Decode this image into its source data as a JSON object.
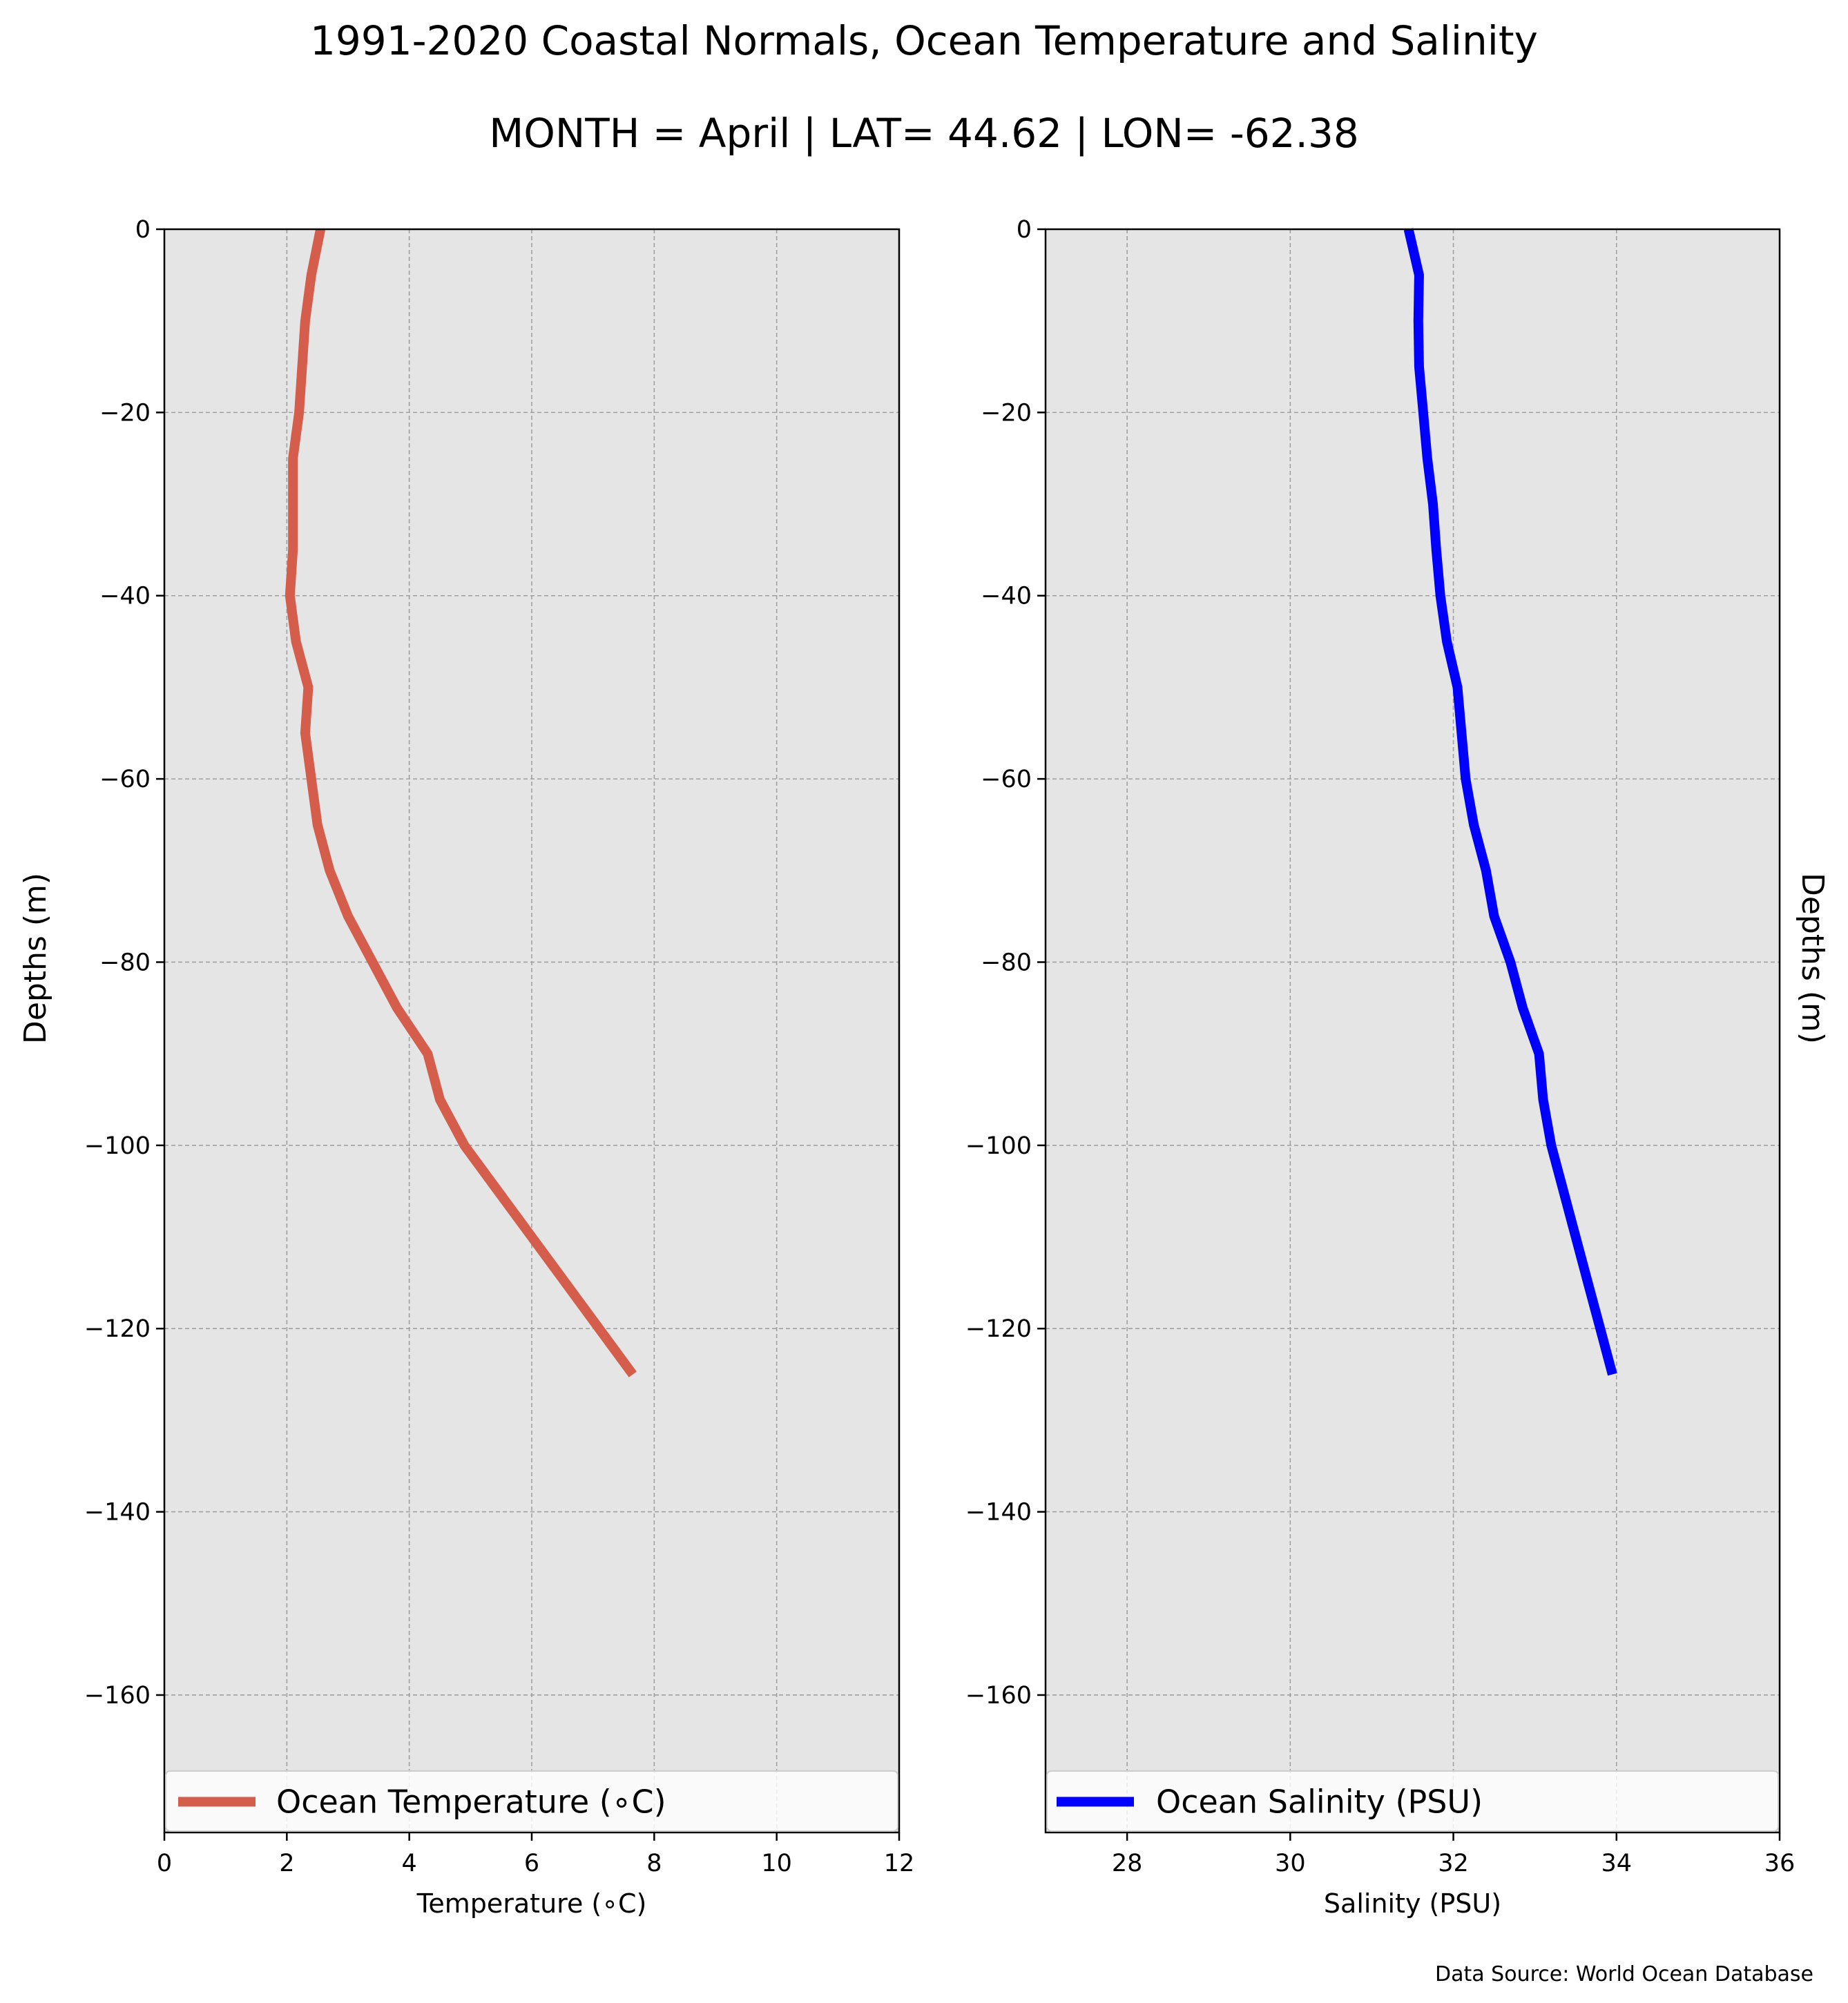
{
  "header": {
    "title": "1991-2020 Coastal Normals, Ocean Temperature and Salinity",
    "subtitle": "MONTH = April | LAT= 44.62 | LON= -62.38"
  },
  "footer": {
    "source": "Data Source: World Ocean Database"
  },
  "colors": {
    "plot_background": "#e5e5e5",
    "temperature_line": "#d45d4c",
    "salinity_line": "#0000ff",
    "grid": "#a0a0a0"
  },
  "chart_data": [
    {
      "type": "line",
      "xlabel": "Temperature ($^\\circ$C)",
      "xlabel_display": "Temperature (∘C)",
      "ylabel": "Depths (m)",
      "xlim": [
        0,
        12
      ],
      "ylim": [
        -175,
        0
      ],
      "xticks": [
        0,
        2,
        4,
        6,
        8,
        10,
        12
      ],
      "xtick_labels": [
        "0",
        "2",
        "4",
        "6",
        "8",
        "10",
        "12"
      ],
      "yticks": [
        0,
        -20,
        -40,
        -60,
        -80,
        -100,
        -120,
        -140,
        -160
      ],
      "ytick_labels": [
        "0",
        "−20",
        "−40",
        "−60",
        "−80",
        "−100",
        "−120",
        "−140",
        "−160"
      ],
      "grid": true,
      "legend_position": "lower center",
      "series": [
        {
          "name": "Ocean Temperature (∘C)",
          "color": "#d45d4c",
          "x": [
            2.55,
            2.4,
            2.3,
            2.25,
            2.2,
            2.1,
            2.1,
            2.1,
            2.05,
            2.15,
            2.35,
            2.3,
            2.4,
            2.5,
            2.7,
            3.0,
            3.4,
            3.8,
            4.3,
            4.5,
            4.9,
            5.45,
            6.0,
            6.55,
            7.1,
            7.65
          ],
          "y": [
            0,
            -5,
            -10,
            -15,
            -20,
            -25,
            -30,
            -35,
            -40,
            -45,
            -50,
            -55,
            -60,
            -65,
            -70,
            -75,
            -80,
            -85,
            -90,
            -95,
            -100,
            -105,
            -110,
            -115,
            -120,
            -125
          ]
        }
      ]
    },
    {
      "type": "line",
      "xlabel": "Salinity (PSU)",
      "ylabel": "Depths (m)",
      "xlim": [
        27,
        36
      ],
      "ylim": [
        -175,
        0
      ],
      "xticks": [
        28,
        30,
        32,
        34,
        36
      ],
      "xtick_labels": [
        "28",
        "30",
        "32",
        "34",
        "36"
      ],
      "yticks": [
        0,
        -20,
        -40,
        -60,
        -80,
        -100,
        -120,
        -140,
        -160
      ],
      "ytick_labels": [
        "0",
        "−20",
        "−40",
        "−60",
        "−80",
        "−100",
        "−120",
        "−140",
        "−160"
      ],
      "grid": true,
      "legend_position": "lower center",
      "series": [
        {
          "name": "Ocean Salinity (PSU)",
          "color": "#0000ff",
          "x": [
            31.45,
            31.58,
            31.57,
            31.58,
            31.63,
            31.68,
            31.75,
            31.79,
            31.84,
            31.92,
            32.05,
            32.1,
            32.15,
            32.25,
            32.4,
            32.5,
            32.7,
            32.85,
            33.05,
            33.1,
            33.2,
            33.35,
            33.5,
            33.65,
            33.8,
            33.95
          ],
          "y": [
            0,
            -5,
            -10,
            -15,
            -20,
            -25,
            -30,
            -35,
            -40,
            -45,
            -50,
            -55,
            -60,
            -65,
            -70,
            -75,
            -80,
            -85,
            -90,
            -95,
            -100,
            -105,
            -110,
            -115,
            -120,
            -125
          ]
        }
      ]
    }
  ]
}
